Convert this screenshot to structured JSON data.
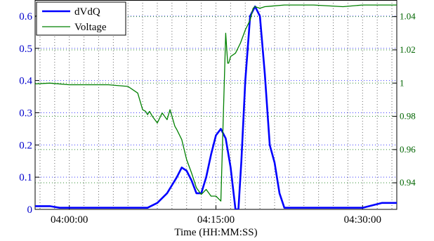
{
  "chart_data": {
    "type": "line",
    "xlabel": "Time (HH:MM:SS)",
    "x_ticks": [
      "04:00:00",
      "04:15:00",
      "04:30:00"
    ],
    "x_tick_values_min": [
      0,
      15,
      30
    ],
    "xlim_min": [
      -3.5,
      33.5
    ],
    "y_left": {
      "lim": [
        0,
        0.65
      ],
      "ticks": [
        0,
        0.1,
        0.2,
        0.3,
        0.4,
        0.5,
        0.6
      ],
      "tick_labels": [
        "0",
        "0.1",
        "0.2",
        "0.3",
        "0.4",
        "0.5",
        "0.6"
      ],
      "color": "#0000cc"
    },
    "y_right": {
      "lim": [
        0.924,
        1.05
      ],
      "ticks": [
        0.94,
        0.96,
        0.98,
        1.0,
        1.02,
        1.04
      ],
      "tick_labels": [
        "0.94",
        "0.96",
        "0.98",
        "1",
        "1.02",
        "1.04"
      ],
      "color": "#006400"
    },
    "grid": true,
    "legend_position": "top-left",
    "series": [
      {
        "name": "dVdQ",
        "axis": "left",
        "color": "#0000ff",
        "x": [
          -3.5,
          -2,
          -1,
          0,
          3,
          6,
          8,
          9,
          10,
          11,
          11.5,
          12,
          12.5,
          13,
          13.5,
          14,
          14.5,
          15,
          15.5,
          16,
          16.5,
          17,
          17.3,
          17.6,
          18,
          18.5,
          19,
          19.5,
          20,
          20.5,
          21,
          21.5,
          22,
          23,
          26,
          30,
          32,
          33.5
        ],
        "y": [
          0.01,
          0.01,
          0.005,
          0.005,
          0.005,
          0.005,
          0.005,
          0.02,
          0.05,
          0.1,
          0.13,
          0.12,
          0.09,
          0.05,
          0.05,
          0.1,
          0.17,
          0.23,
          0.25,
          0.22,
          0.13,
          0.0,
          0.0,
          0.15,
          0.4,
          0.6,
          0.63,
          0.6,
          0.42,
          0.2,
          0.145,
          0.05,
          0.005,
          0.005,
          0.005,
          0.005,
          0.02,
          0.02
        ]
      },
      {
        "name": "Voltage",
        "axis": "right",
        "color": "#008000",
        "x": [
          -3.5,
          -2,
          0,
          2,
          4,
          6,
          7,
          7.5,
          7.8,
          8.0,
          8.2,
          8.5,
          9.0,
          9.5,
          10.0,
          10.3,
          10.5,
          10.8,
          11.0,
          11.5,
          12.0,
          12.5,
          13.0,
          13.5,
          14.0,
          14.5,
          15.0,
          15.5,
          16.0,
          16.2,
          16.3,
          16.5,
          17.0,
          17.5,
          18.0,
          18.5,
          18.8,
          19.0,
          19.5,
          20,
          22,
          25,
          28,
          30,
          33.5
        ],
        "y": [
          0.9995,
          1.0,
          0.999,
          0.999,
          0.999,
          0.998,
          0.994,
          0.984,
          0.983,
          0.981,
          0.983,
          0.98,
          0.976,
          0.982,
          0.978,
          0.984,
          0.98,
          0.974,
          0.972,
          0.966,
          0.954,
          0.946,
          0.937,
          0.933,
          0.936,
          0.932,
          0.932,
          0.929,
          1.03,
          1.012,
          1.012,
          1.016,
          1.018,
          1.024,
          1.032,
          1.038,
          1.045,
          1.046,
          1.045,
          1.046,
          1.047,
          1.047,
          1.046,
          1.047,
          1.047
        ]
      }
    ]
  }
}
